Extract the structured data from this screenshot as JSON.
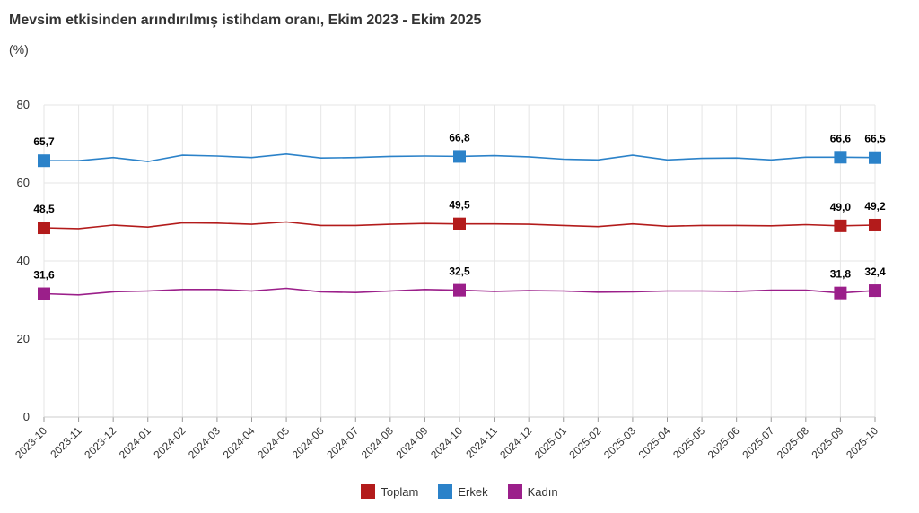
{
  "header": {
    "title": "Mevsim etkisinden arındırılmış istihdam oranı, Ekim 2023 - Ekim 2025",
    "subtitle": "(%)"
  },
  "chart_data": {
    "type": "line",
    "title": "Mevsim etkisinden arındırılmış istihdam oranı, Ekim 2023 - Ekim 2025",
    "subtitle": "(%)",
    "xlabel": "",
    "ylabel": "",
    "ylim": [
      0,
      80
    ],
    "yticks": [
      0,
      20,
      40,
      60,
      80
    ],
    "grid": true,
    "legend_position": "bottom-center",
    "categories": [
      "2023-10",
      "2023-11",
      "2023-12",
      "2024-01",
      "2024-02",
      "2024-03",
      "2024-04",
      "2024-05",
      "2024-06",
      "2024-07",
      "2024-08",
      "2024-09",
      "2024-10",
      "2024-11",
      "2024-12",
      "2025-01",
      "2025-02",
      "2025-03",
      "2025-04",
      "2025-05",
      "2025-06",
      "2025-07",
      "2025-08",
      "2025-09",
      "2025-10"
    ],
    "series": [
      {
        "name": "Toplam",
        "color": "#b31b1b",
        "values": [
          48.5,
          48.3,
          49.2,
          48.7,
          49.8,
          49.7,
          49.4,
          50.0,
          49.1,
          49.1,
          49.4,
          49.6,
          49.5,
          49.5,
          49.4,
          49.1,
          48.8,
          49.5,
          48.9,
          49.1,
          49.1,
          49.0,
          49.3,
          49.0,
          49.2
        ],
        "markers": [
          {
            "index": 0,
            "label": "48,5"
          },
          {
            "index": 12,
            "label": "49,5"
          },
          {
            "index": 23,
            "label": "49,0"
          },
          {
            "index": 24,
            "label": "49,2"
          }
        ]
      },
      {
        "name": "Erkek",
        "color": "#2b82c9",
        "values": [
          65.7,
          65.7,
          66.5,
          65.5,
          67.1,
          66.9,
          66.5,
          67.4,
          66.4,
          66.5,
          66.8,
          66.9,
          66.8,
          67.0,
          66.7,
          66.1,
          65.9,
          67.1,
          65.9,
          66.3,
          66.4,
          65.9,
          66.6,
          66.6,
          66.5
        ],
        "markers": [
          {
            "index": 0,
            "label": "65,7"
          },
          {
            "index": 12,
            "label": "66,8"
          },
          {
            "index": 23,
            "label": "66,6"
          },
          {
            "index": 24,
            "label": "66,5"
          }
        ]
      },
      {
        "name": "Kadın",
        "color": "#9b1f8a",
        "values": [
          31.6,
          31.3,
          32.1,
          32.3,
          32.7,
          32.7,
          32.3,
          33.0,
          32.1,
          31.9,
          32.3,
          32.7,
          32.5,
          32.2,
          32.4,
          32.3,
          32.0,
          32.1,
          32.3,
          32.3,
          32.2,
          32.5,
          32.5,
          31.8,
          32.4
        ],
        "markers": [
          {
            "index": 0,
            "label": "31,6"
          },
          {
            "index": 12,
            "label": "32,5"
          },
          {
            "index": 23,
            "label": "31,8"
          },
          {
            "index": 24,
            "label": "32,4"
          }
        ]
      }
    ]
  }
}
